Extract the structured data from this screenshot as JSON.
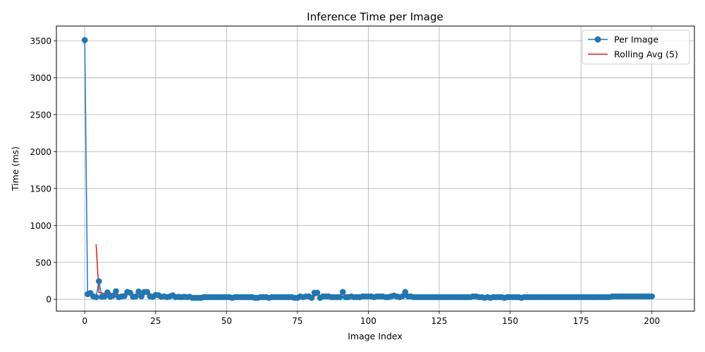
{
  "chart_data": {
    "type": "line",
    "title": "Inference Time per Image",
    "xlabel": "Image Index",
    "ylabel": "Time (ms)",
    "xlim": [
      -10,
      215
    ],
    "ylim": [
      -160,
      3700
    ],
    "xticks": [
      0,
      25,
      50,
      75,
      100,
      125,
      150,
      175,
      200
    ],
    "yticks": [
      0,
      500,
      1000,
      1500,
      2000,
      2500,
      3000,
      3500
    ],
    "grid": true,
    "legend_position": "top-right",
    "series": [
      {
        "name": "Per Image",
        "style": "line-with-markers",
        "color": "#1f77b4",
        "values": [
          3510,
          70,
          85,
          40,
          30,
          245,
          35,
          40,
          95,
          35,
          50,
          110,
          30,
          40,
          45,
          100,
          90,
          35,
          40,
          105,
          40,
          100,
          100,
          40,
          35,
          60,
          55,
          35,
          40,
          30,
          40,
          55,
          30,
          35,
          30,
          35,
          30,
          35,
          20,
          20,
          20,
          20,
          30,
          30,
          30,
          30,
          30,
          30,
          30,
          30,
          30,
          30,
          20,
          30,
          30,
          30,
          30,
          30,
          30,
          30,
          20,
          20,
          30,
          30,
          30,
          20,
          30,
          30,
          30,
          30,
          30,
          30,
          30,
          30,
          20,
          20,
          40,
          30,
          40,
          40,
          20,
          90,
          90,
          20,
          40,
          40,
          40,
          30,
          30,
          30,
          30,
          100,
          30,
          30,
          40,
          30,
          30,
          30,
          40,
          40,
          40,
          40,
          30,
          40,
          40,
          40,
          30,
          30,
          40,
          50,
          40,
          30,
          40,
          100,
          40,
          40,
          30,
          30,
          30,
          30,
          30,
          30,
          30,
          30,
          30,
          30,
          30,
          30,
          30,
          30,
          30,
          30,
          30,
          30,
          30,
          30,
          30,
          40,
          40,
          30,
          30,
          20,
          30,
          20,
          30,
          30,
          30,
          30,
          20,
          30,
          30,
          30,
          30,
          30,
          20,
          30,
          30,
          30,
          30,
          30,
          30,
          30,
          30,
          30,
          30,
          30,
          30,
          30,
          30,
          30,
          30,
          30,
          30,
          30,
          30,
          30,
          30,
          30,
          30,
          30,
          30,
          30,
          30,
          30,
          30,
          30,
          40,
          40,
          40,
          40,
          40,
          40,
          40,
          40,
          40,
          40,
          40,
          40,
          40,
          40,
          40
        ]
      },
      {
        "name": "Rolling Avg (5)",
        "style": "line",
        "color": "#e31a1c",
        "window": 5
      }
    ]
  }
}
